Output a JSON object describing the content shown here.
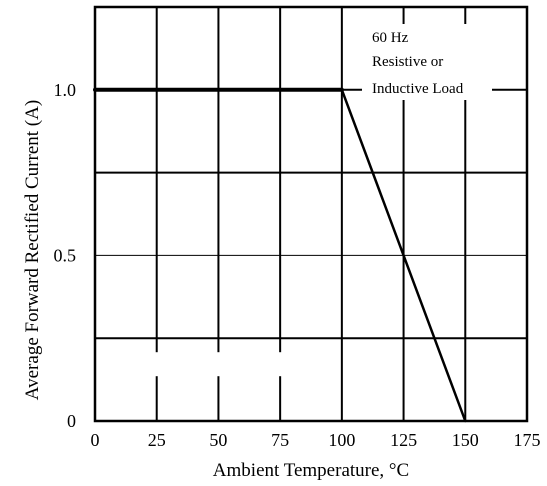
{
  "chart_data": {
    "type": "line",
    "title": "",
    "xlabel": "Ambient Temperature, °C",
    "ylabel": "Average Forward Rectified Current (A)",
    "xlim": [
      0,
      175
    ],
    "ylim": [
      0,
      1.25
    ],
    "x_ticks": [
      0,
      25,
      50,
      75,
      100,
      125,
      150,
      175
    ],
    "x_tick_labels": [
      "0",
      "25",
      "50",
      "75",
      "100",
      "125",
      "150",
      "175"
    ],
    "y_ticks": [
      0,
      0.5,
      1.0
    ],
    "y_tick_labels": [
      "0",
      "0.5",
      "1.0"
    ],
    "grid": true,
    "annotations": [
      "60 Hz",
      "Resistive or",
      "Inductive Load"
    ],
    "series": [
      {
        "x": [
          0,
          100,
          150
        ],
        "y": [
          1.0,
          1.0,
          0
        ]
      }
    ]
  }
}
